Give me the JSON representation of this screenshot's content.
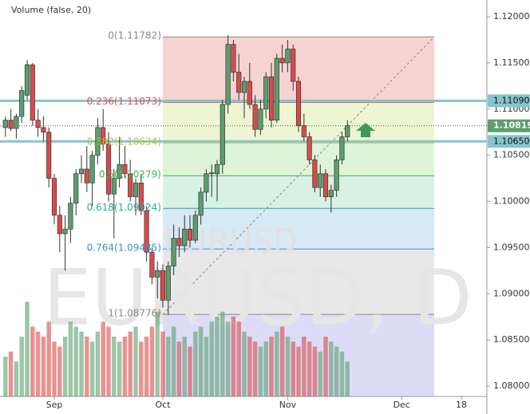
{
  "chart_data": {
    "type": "candlestick",
    "title": "Volume (false, 20)",
    "watermark": "EURUSD, D",
    "watermark_small": "EURUSD",
    "up_color": "#5c9e6e",
    "down_color": "#d94b4b",
    "x": [
      1,
      2,
      3,
      4,
      5,
      6,
      7,
      8,
      9,
      10,
      11,
      12,
      13,
      14,
      15,
      16,
      17,
      18,
      19,
      20,
      21,
      22,
      23,
      24,
      25,
      26,
      27,
      28,
      29,
      30,
      31,
      32,
      33,
      34,
      35,
      36,
      37,
      38,
      39,
      40,
      41,
      42,
      43,
      44,
      45,
      46,
      47,
      48,
      49,
      50,
      51,
      52,
      53,
      54,
      55,
      56,
      57,
      58,
      59,
      60,
      61,
      62,
      63,
      64
    ],
    "open": [
      1.108,
      1.1088,
      1.1079,
      1.1092,
      1.1115,
      1.1148,
      1.1088,
      1.108,
      1.1075,
      1.1025,
      1.0985,
      1.0965,
      1.097,
      1.0998,
      1.103,
      1.1035,
      1.102,
      1.105,
      1.108,
      1.1062,
      1.1008,
      1.1025,
      1.104,
      1.103,
      1.1005,
      1.102,
      1.099,
      1.0945,
      1.0918,
      1.0925,
      1.0893,
      1.093,
      1.096,
      1.0952,
      1.097,
      1.0958,
      1.0985,
      1.101,
      1.103,
      1.103,
      1.104,
      1.1105,
      1.117,
      1.114,
      1.1118,
      1.113,
      1.1105,
      1.1078,
      1.11,
      1.1135,
      1.1088,
      1.1155,
      1.115,
      1.1165,
      1.113,
      1.1082,
      1.107,
      1.1045,
      1.1015,
      1.103,
      1.1005,
      1.1012,
      1.1045,
      1.107
    ],
    "high": [
      1.1092,
      1.11,
      1.1095,
      1.1125,
      1.1153,
      1.115,
      1.11,
      1.1092,
      1.108,
      1.103,
      1.0995,
      1.0985,
      1.1005,
      1.1035,
      1.105,
      1.106,
      1.1055,
      1.109,
      1.11,
      1.1075,
      1.1035,
      1.107,
      1.106,
      1.1045,
      1.1025,
      1.103,
      1.0995,
      1.095,
      1.0935,
      1.0932,
      1.0935,
      1.0975,
      1.0972,
      1.0985,
      1.0985,
      1.099,
      1.1015,
      1.1035,
      1.104,
      1.1045,
      1.111,
      1.118,
      1.1175,
      1.116,
      1.1135,
      1.115,
      1.1115,
      1.111,
      1.114,
      1.115,
      1.116,
      1.117,
      1.1175,
      1.117,
      1.1135,
      1.1095,
      1.1075,
      1.105,
      1.104,
      1.1035,
      1.1018,
      1.105,
      1.1075,
      1.1088
    ],
    "low": [
      1.107,
      1.1076,
      1.1068,
      1.1085,
      1.111,
      1.1082,
      1.107,
      1.1065,
      1.1015,
      1.0975,
      1.0945,
      1.0925,
      1.0955,
      1.0985,
      1.102,
      1.101,
      1.0995,
      1.104,
      1.1055,
      1.1,
      1.096,
      1.1015,
      1.1025,
      1.1,
      1.0985,
      1.0985,
      1.0935,
      1.091,
      1.0895,
      1.0885,
      1.0877,
      1.092,
      1.094,
      1.0945,
      1.095,
      1.0955,
      1.0975,
      1.1,
      1.1005,
      1.1,
      1.103,
      1.1095,
      1.113,
      1.111,
      1.109,
      1.11,
      1.107,
      1.1072,
      1.109,
      1.108,
      1.1085,
      1.114,
      1.114,
      1.112,
      1.1075,
      1.1065,
      1.104,
      1.101,
      1.1005,
      1.1,
      1.0988,
      1.1005,
      1.104,
      1.1065
    ],
    "close": [
      1.1088,
      1.1079,
      1.1092,
      1.112,
      1.1148,
      1.1088,
      1.108,
      1.1075,
      1.1025,
      1.0985,
      1.0965,
      1.097,
      1.0998,
      1.103,
      1.1035,
      1.102,
      1.105,
      1.108,
      1.1062,
      1.1008,
      1.1025,
      1.104,
      1.103,
      1.1005,
      1.102,
      1.099,
      1.0945,
      1.0918,
      1.0925,
      1.0893,
      1.093,
      1.096,
      1.0952,
      1.097,
      1.0958,
      1.0985,
      1.101,
      1.103,
      1.1031,
      1.104,
      1.1105,
      1.117,
      1.114,
      1.1118,
      1.113,
      1.1105,
      1.1078,
      1.11,
      1.1135,
      1.1088,
      1.1155,
      1.115,
      1.1165,
      1.113,
      1.1082,
      1.107,
      1.1045,
      1.1015,
      1.103,
      1.1005,
      1.1012,
      1.1045,
      1.107,
      1.10819
    ],
    "volume": [
      40,
      45,
      35,
      60,
      95,
      70,
      65,
      60,
      75,
      55,
      50,
      60,
      75,
      70,
      65,
      60,
      55,
      65,
      75,
      70,
      60,
      55,
      60,
      65,
      70,
      55,
      60,
      70,
      85,
      65,
      60,
      70,
      55,
      60,
      50,
      65,
      70,
      60,
      75,
      80,
      85,
      75,
      80,
      75,
      65,
      60,
      55,
      50,
      55,
      60,
      65,
      70,
      60,
      55,
      50,
      60,
      55,
      50,
      45,
      60,
      55,
      50,
      45,
      35
    ],
    "vlim": [
      0,
      100
    ],
    "xlim": [
      0,
      89.7
    ],
    "xticks": [
      {
        "value": 10,
        "label": "Sep"
      },
      {
        "value": 30,
        "label": "Oct"
      },
      {
        "value": 53,
        "label": "Nov"
      },
      {
        "value": 74,
        "label": "Dec"
      },
      {
        "value": 85,
        "label": "18"
      }
    ],
    "ylim": [
      1.08,
      1.12
    ],
    "yticks": [
      {
        "value": 1.08,
        "label": "1.08000"
      },
      {
        "value": 1.085,
        "label": "1.08500"
      },
      {
        "value": 1.09,
        "label": "1.09000"
      },
      {
        "value": 1.095,
        "label": "1.09500"
      },
      {
        "value": 1.1,
        "label": "1.10000"
      },
      {
        "value": 1.105,
        "label": "1.10500"
      },
      {
        "value": 1.11,
        "label": "1.11000"
      },
      {
        "value": 1.115,
        "label": "1.11500"
      },
      {
        "value": 1.12,
        "label": "1.12000"
      }
    ],
    "levels": [
      {
        "value": 1.1109,
        "label": "1.11090"
      },
      {
        "value": 1.1065,
        "label": "1.10650"
      }
    ],
    "level_color": "#86c5cf",
    "current": {
      "value": 1.10819,
      "label": "1.10819"
    },
    "fib": {
      "x_start": 30,
      "x_end": 80,
      "levels": [
        {
          "price": 1.11782,
          "label": "0(1.11782)",
          "color": "#888888"
        },
        {
          "price": 1.11073,
          "label": "0.236(1.11073)",
          "color": "#d9534f"
        },
        {
          "price": 1.10634,
          "label": "0.382(1.10634)",
          "color": "#b5c43a"
        },
        {
          "price": 1.10279,
          "label": "0.5(1.10279)",
          "color": "#3fb24f"
        },
        {
          "price": 1.09924,
          "label": "0.618(1.09924)",
          "color": "#2ea89a"
        },
        {
          "price": 1.09485,
          "label": "0.764(1.09485)",
          "color": "#3d8fc4"
        },
        {
          "price": 1.08776,
          "label": "1(1.08776)",
          "color": "#888888"
        }
      ],
      "zone_colors": [
        "#f6d3d1",
        "#eef5d2",
        "#def3d8",
        "#d7f1e4",
        "#d6e9f5",
        "#e8e8e8",
        "#dcdcf7"
      ]
    }
  }
}
